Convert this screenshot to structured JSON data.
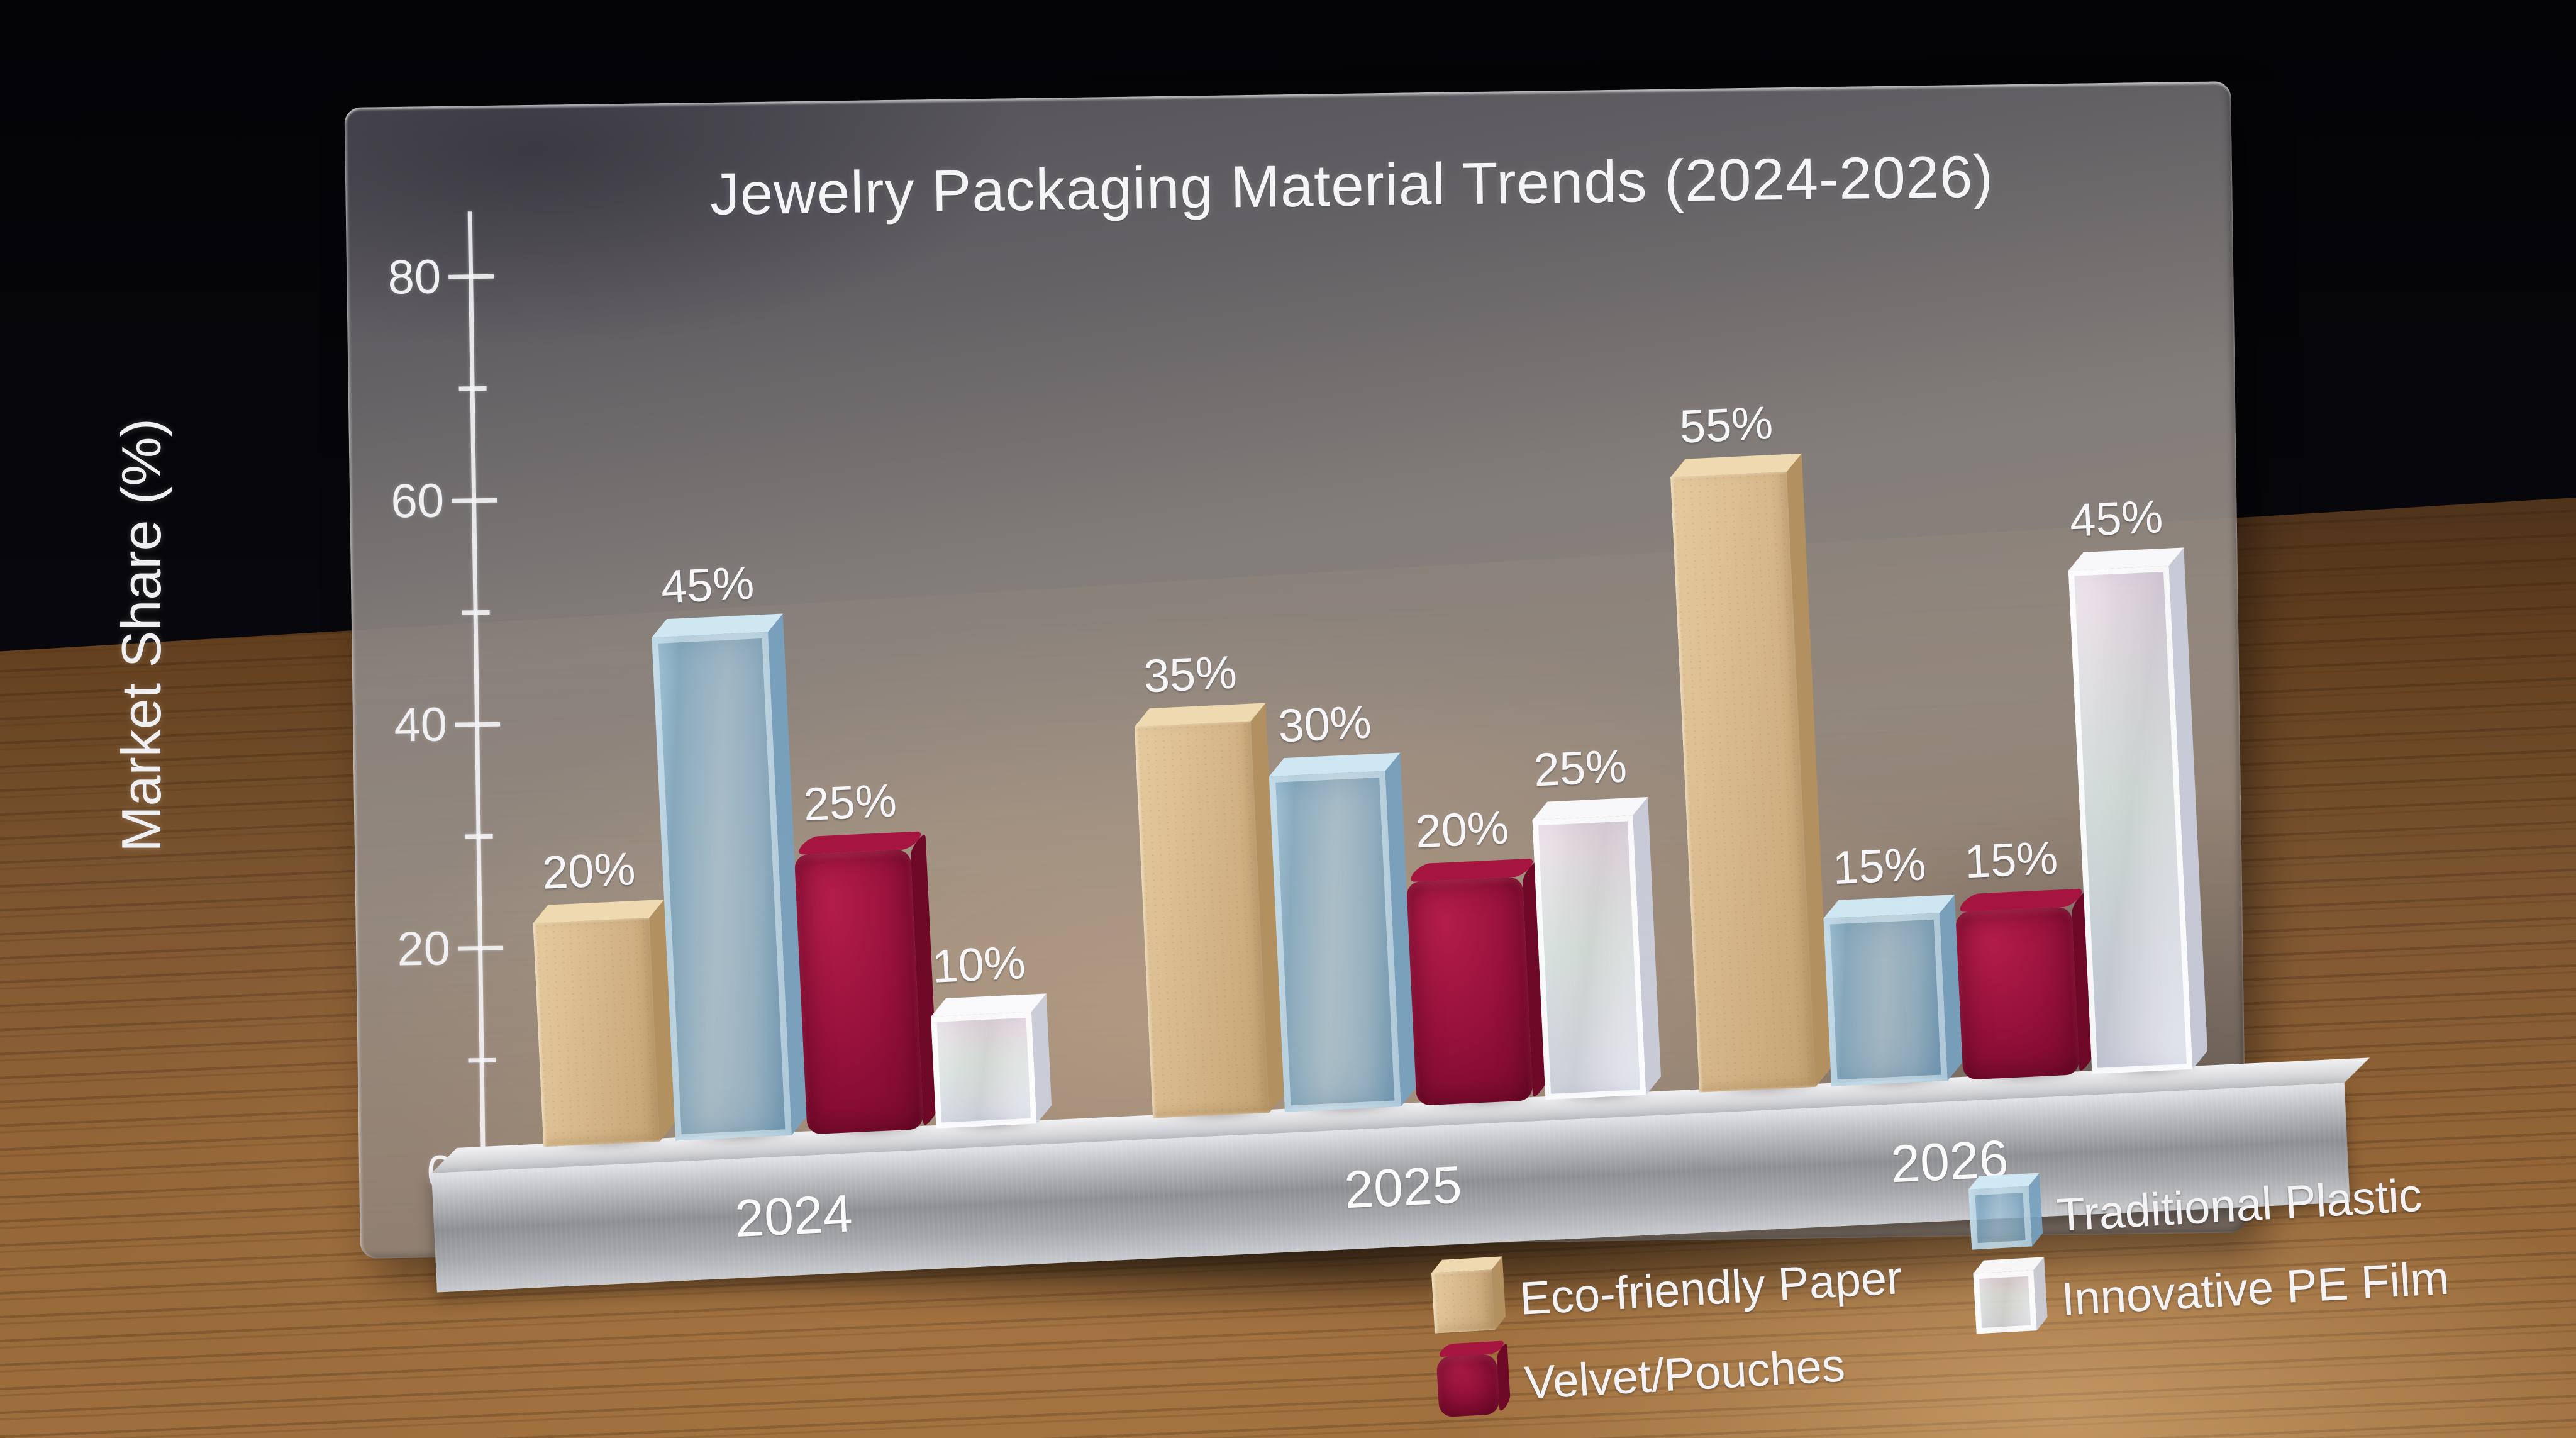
{
  "title": "Jewelry Packaging Material Trends (2024-2026)",
  "y_axis": {
    "label": "Market Share (%)"
  },
  "chart_data": {
    "type": "bar",
    "title": "Jewelry Packaging Material Trends (2024-2026)",
    "categories": [
      "2024",
      "2025",
      "2026"
    ],
    "series": [
      {
        "name": "Eco-friendly Paper",
        "material": "paper",
        "color": "#d7b88b",
        "values": [
          20,
          35,
          55
        ]
      },
      {
        "name": "Traditional Plastic",
        "material": "glass-blue",
        "color": "#a9cade",
        "values": [
          45,
          30,
          15
        ]
      },
      {
        "name": "Velvet/Pouches",
        "material": "velvet",
        "color": "#94103a",
        "values": [
          25,
          20,
          15
        ]
      },
      {
        "name": "Innovative PE Film",
        "material": "film",
        "color": "#eef0f6",
        "values": [
          10,
          25,
          45
        ]
      }
    ],
    "value_suffix": "%",
    "data_labels": true,
    "xlabel": "",
    "ylabel": "Market Share (%)",
    "ylim": [
      0,
      80
    ],
    "yticks": [
      0,
      20,
      40,
      60,
      80
    ],
    "minor_yticks": [
      10,
      30,
      50,
      70
    ],
    "grid": false,
    "legend_position": "bottom-right",
    "background": "dark studio, wooden table, frosted glass panel",
    "accent_colors": {
      "metal_base": "#a4a5a9",
      "text": "#f4f4f6",
      "wood": "#7c5530",
      "backdrop": "#08080d"
    }
  },
  "legend": {
    "columns": [
      {
        "series_indexes": [
          0,
          2
        ]
      },
      {
        "series_indexes": [
          1,
          3
        ]
      }
    ]
  }
}
